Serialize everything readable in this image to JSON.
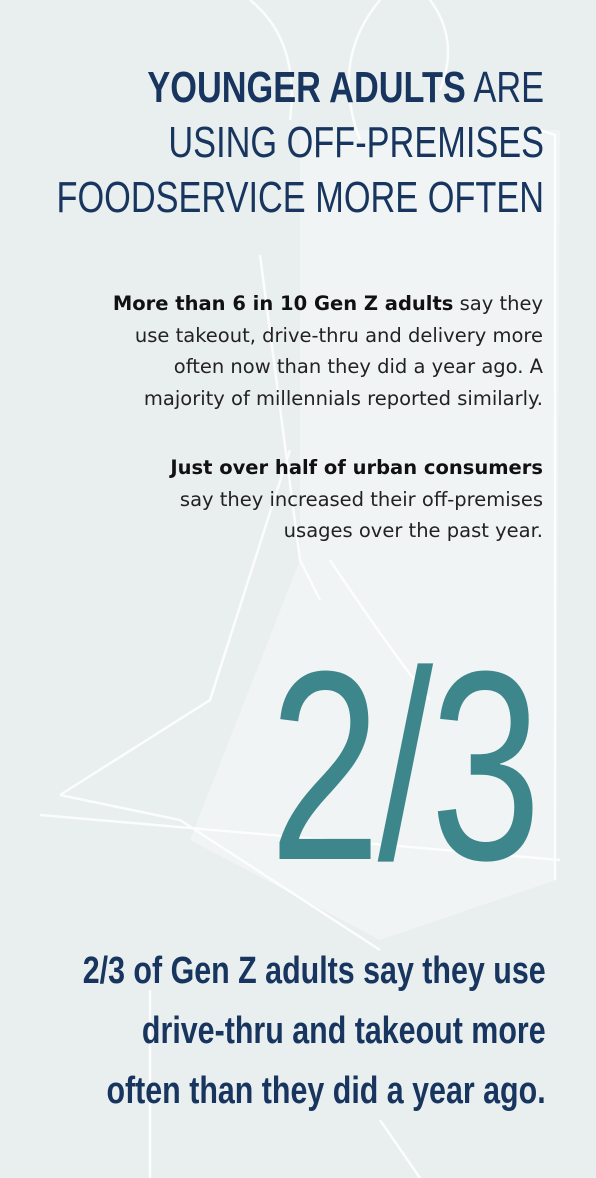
{
  "headline": {
    "line1_bold": "YOUNGER ADULTS",
    "line1_rest": " ARE",
    "line2": "USING OFF-PREMISES",
    "line3": "FOODSERVICE MORE OFTEN"
  },
  "paragraph1": {
    "lines": [
      {
        "bold": "More than 6 in 10 Gen Z adults",
        "text": " say they"
      },
      {
        "bold": "",
        "text": "use takeout, drive-thru and delivery more"
      },
      {
        "bold": "",
        "text": "often now than they did a year ago. A"
      },
      {
        "bold": "",
        "text": "majority of millennials reported similarly."
      }
    ]
  },
  "paragraph2": {
    "lines": [
      {
        "bold": "Just over half of urban consumers",
        "text": ""
      },
      {
        "bold": "",
        "text": "say they increased their off-premises"
      },
      {
        "bold": "",
        "text": "usages over the past year."
      }
    ]
  },
  "stat": {
    "value": "2/3",
    "caption_lines": [
      "2/3 of Gen Z adults say they use",
      "drive-thru and takeout more",
      "often than they did a year ago."
    ]
  },
  "colors": {
    "navy": "#17355e",
    "teal": "#3d878c",
    "background": "#e9eeee"
  }
}
